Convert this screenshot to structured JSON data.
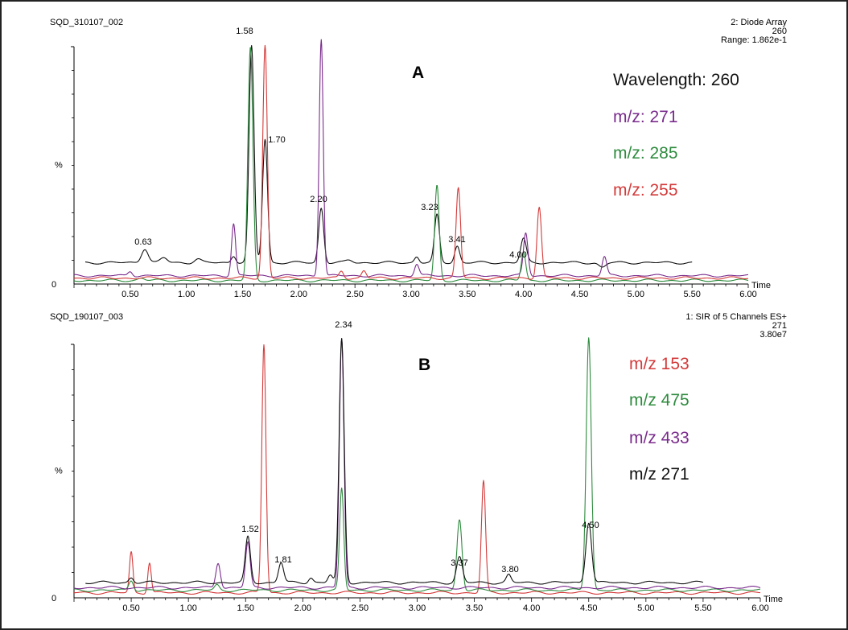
{
  "chart_data": [
    {
      "type": "line",
      "panel_label": "A",
      "header_left": "SQD_310107_002",
      "header_right": [
        "2: Diode Array",
        "260",
        "Range: 1.862e-1"
      ],
      "ylabel": "%",
      "y_ticks": [
        "0"
      ],
      "xlabel": "Time",
      "xlim": [
        0.0,
        6.0
      ],
      "x_ticks": [
        "0.50",
        "1.00",
        "1.50",
        "2.00",
        "2.50",
        "3.00",
        "3.50",
        "4.00",
        "4.50",
        "5.00",
        "5.50",
        "6.00"
      ],
      "ylim": [
        0,
        100
      ],
      "legend": [
        {
          "text": "Wavelength: 260",
          "color": "#111111"
        },
        {
          "text": "m/z: 271",
          "color": "#7a2b8c"
        },
        {
          "text": "m/z: 285",
          "color": "#2e8b3e"
        },
        {
          "text": "m/z: 255",
          "color": "#d43a3a"
        }
      ],
      "peak_labels": [
        {
          "x": 0.63,
          "text": "0.63"
        },
        {
          "x": 1.58,
          "text": "1.58"
        },
        {
          "x": 1.7,
          "text": "1.70"
        },
        {
          "x": 2.2,
          "text": "2.20"
        },
        {
          "x": 3.23,
          "text": "3.23"
        },
        {
          "x": 3.41,
          "text": "3.41"
        },
        {
          "x": 4.0,
          "text": "4.00"
        }
      ],
      "series": [
        {
          "name": "Wavelength: 260",
          "color": "#111111",
          "baseline": 9,
          "x_range": [
            0.1,
            5.5
          ],
          "peaks": [
            [
              0.63,
              6,
              0.03
            ],
            [
              0.8,
              2,
              0.03
            ],
            [
              1.1,
              1.5,
              0.03
            ],
            [
              1.42,
              3,
              0.02
            ],
            [
              1.58,
              91,
              0.022
            ],
            [
              1.7,
              52,
              0.022
            ],
            [
              2.2,
              23,
              0.022
            ],
            [
              2.45,
              1,
              0.03
            ],
            [
              3.05,
              2.5,
              0.02
            ],
            [
              3.23,
              20,
              0.022
            ],
            [
              3.41,
              7,
              0.022
            ],
            [
              4.0,
              10,
              0.025
            ],
            [
              4.7,
              -2,
              0.03
            ]
          ]
        },
        {
          "name": "m/z: 271",
          "color": "#7a2b8c",
          "baseline": 3.5,
          "x_range": [
            0.0,
            6.0
          ],
          "peaks": [
            [
              0.5,
              2,
              0.02
            ],
            [
              1.42,
              22,
              0.018
            ],
            [
              2.2,
              100,
              0.018
            ],
            [
              3.05,
              5,
              0.02
            ],
            [
              4.02,
              18,
              0.02
            ],
            [
              4.72,
              8,
              0.02
            ]
          ]
        },
        {
          "name": "m/z: 285",
          "color": "#2e8b3e",
          "baseline": 1.5,
          "x_range": [
            0.0,
            6.0
          ],
          "peaks": [
            [
              0.6,
              1,
              0.03
            ],
            [
              1.57,
              98,
              0.022
            ],
            [
              3.23,
              40,
              0.02
            ],
            [
              4.0,
              12,
              0.02
            ]
          ]
        },
        {
          "name": "m/z: 255",
          "color": "#d43a3a",
          "baseline": 2.5,
          "x_range": [
            0.0,
            6.0
          ],
          "peaks": [
            [
              1.7,
              98,
              0.02
            ],
            [
              2.38,
              3,
              0.02
            ],
            [
              2.58,
              3,
              0.02
            ],
            [
              3.42,
              38,
              0.02
            ],
            [
              4.14,
              30,
              0.02
            ]
          ]
        }
      ]
    },
    {
      "type": "line",
      "panel_label": "B",
      "header_left": "SQD_190107_003",
      "header_right": [
        "1: SIR of 5 Channels ES+",
        "271",
        "3.80e7"
      ],
      "ylabel": "%",
      "y_ticks": [
        "0"
      ],
      "xlabel": "Time",
      "xlim": [
        0.0,
        6.0
      ],
      "x_ticks": [
        "0.50",
        "1.00",
        "1.50",
        "2.00",
        "2.50",
        "3.00",
        "3.50",
        "4.00",
        "4.50",
        "5.00",
        "5.50",
        "6.00"
      ],
      "ylim": [
        0,
        100
      ],
      "legend": [
        {
          "text": "m/z  153",
          "color": "#d43a3a"
        },
        {
          "text": "m/z 475",
          "color": "#2e8b3e"
        },
        {
          "text": "m/z 433",
          "color": "#7a2b8c"
        },
        {
          "text": "m/z 271",
          "color": "#111111"
        }
      ],
      "peak_labels": [
        {
          "x": 1.52,
          "text": "1.52"
        },
        {
          "x": 1.81,
          "text": "1.81"
        },
        {
          "x": 2.34,
          "text": "2.34"
        },
        {
          "x": 3.37,
          "text": "3.37"
        },
        {
          "x": 3.8,
          "text": "3.80"
        },
        {
          "x": 4.5,
          "text": "4.50"
        }
      ],
      "series": [
        {
          "name": "m/z  153",
          "color": "#d43a3a",
          "baseline": 2,
          "x_range": [
            0.0,
            6.0
          ],
          "peaks": [
            [
              0.5,
              16,
              0.015
            ],
            [
              0.66,
              12,
              0.015
            ],
            [
              1.66,
              98,
              0.018
            ],
            [
              3.58,
              44,
              0.018
            ]
          ]
        },
        {
          "name": "m/z 475",
          "color": "#2e8b3e",
          "baseline": 3,
          "x_range": [
            0.0,
            6.0
          ],
          "peaks": [
            [
              0.5,
              4,
              0.02
            ],
            [
              1.25,
              2,
              0.02
            ],
            [
              2.34,
              40,
              0.018
            ],
            [
              3.37,
              28,
              0.022
            ],
            [
              4.5,
              100,
              0.022
            ]
          ]
        },
        {
          "name": "m/z 433",
          "color": "#7a2b8c",
          "baseline": 4,
          "x_range": [
            0.0,
            6.0
          ],
          "peaks": [
            [
              1.26,
              10,
              0.02
            ],
            [
              1.52,
              18,
              0.02
            ],
            [
              2.34,
              98,
              0.02
            ]
          ]
        },
        {
          "name": "m/z 271",
          "color": "#111111",
          "baseline": 6,
          "x_range": [
            0.1,
            5.5
          ],
          "peaks": [
            [
              0.5,
              2,
              0.02
            ],
            [
              1.52,
              18,
              0.022
            ],
            [
              1.81,
              8,
              0.022
            ],
            [
              2.07,
              2,
              0.02
            ],
            [
              2.24,
              3,
              0.02
            ],
            [
              2.34,
              96,
              0.022
            ],
            [
              3.37,
              10,
              0.025
            ],
            [
              3.8,
              3,
              0.02
            ],
            [
              4.5,
              24,
              0.025
            ]
          ]
        }
      ]
    }
  ]
}
